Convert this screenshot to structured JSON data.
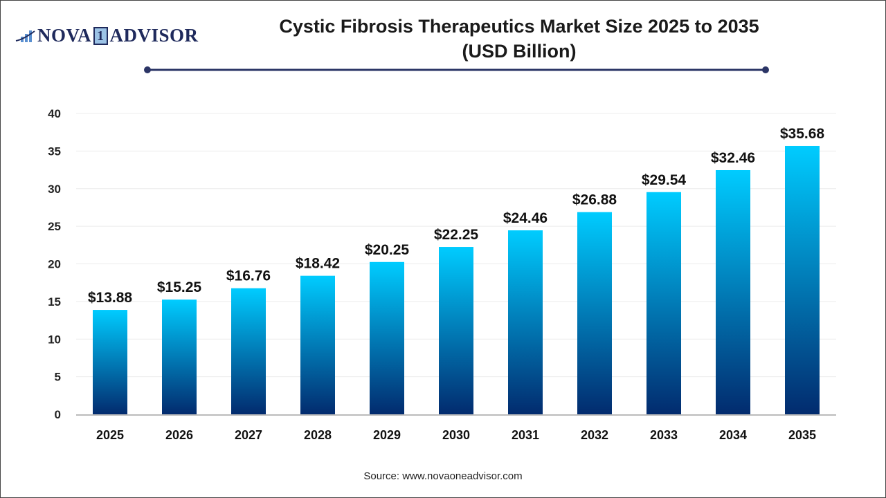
{
  "logo": {
    "text_left": "NOVA",
    "text_mid": "1",
    "text_right": "ADVISOR"
  },
  "title_line1": "Cystic Fibrosis Therapeutics Market Size 2025 to 2035",
  "title_line2": "(USD Billion)",
  "source": "Source: www.novaoneadvisor.com",
  "colors": {
    "bar_top": "#00ccff",
    "bar_bottom": "#022b6e",
    "title_rule": "#2b3566"
  },
  "chart_data": {
    "type": "bar",
    "title": "Cystic Fibrosis Therapeutics Market Size 2025 to 2035 (USD Billion)",
    "categories": [
      "2025",
      "2026",
      "2027",
      "2028",
      "2029",
      "2030",
      "2031",
      "2032",
      "2033",
      "2034",
      "2035"
    ],
    "values": [
      13.88,
      15.25,
      16.76,
      18.42,
      20.25,
      22.25,
      24.46,
      26.88,
      29.54,
      32.46,
      35.68
    ],
    "data_labels": [
      "$13.88",
      "$15.25",
      "$16.76",
      "$18.42",
      "$20.25",
      "$22.25",
      "$24.46",
      "$26.88",
      "$29.54",
      "$32.46",
      "$35.68"
    ],
    "yticks": [
      0,
      5,
      10,
      15,
      20,
      25,
      30,
      35,
      40
    ],
    "ylim": [
      0,
      40
    ],
    "grid": true,
    "xlabel": "",
    "ylabel": ""
  }
}
